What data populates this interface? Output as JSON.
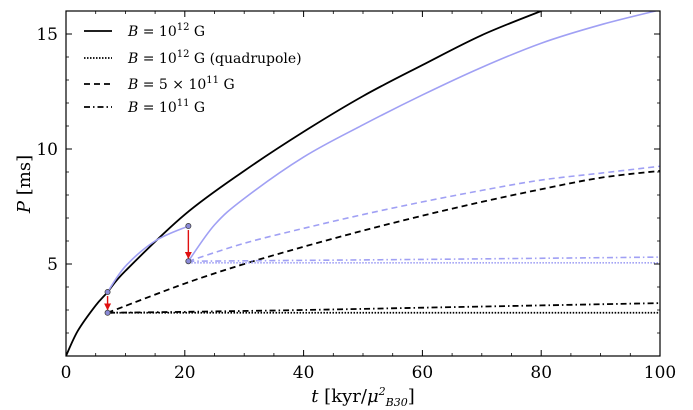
{
  "chart_data": {
    "type": "line",
    "xlabel": "t [kyr/μ²_B30]",
    "ylabel": "P [ms]",
    "xlim": [
      0,
      100
    ],
    "ylim": [
      1,
      16
    ],
    "x_ticks": [
      0,
      20,
      40,
      60,
      80,
      100
    ],
    "y_ticks": [
      5,
      10,
      15
    ],
    "grid": false,
    "legend_position": "top-left",
    "legend": [
      {
        "label": "B = 10^12 G",
        "linestyle": "solid",
        "color": "#000000"
      },
      {
        "label": "B = 10^12 G (quadrupole)",
        "linestyle": "dotted",
        "color": "#000000"
      },
      {
        "label": "B = 5 × 10^11 G",
        "linestyle": "dashed",
        "color": "#000000"
      },
      {
        "label": "B = 10^11 G",
        "linestyle": "dashdot",
        "color": "#000000"
      }
    ],
    "series": [
      {
        "color": "#000000",
        "linestyle": "solid",
        "x": [
          0,
          2,
          5,
          7,
          10,
          20,
          30,
          40,
          50,
          60,
          70,
          80,
          82
        ],
        "y": [
          1.0,
          2.1,
          3.2,
          3.78,
          4.7,
          7.15,
          9.05,
          10.75,
          12.3,
          13.65,
          14.95,
          16.0,
          16.2
        ]
      },
      {
        "color": "#000000",
        "linestyle": "dotted",
        "x": [
          7,
          100
        ],
        "y": [
          2.88,
          2.88
        ]
      },
      {
        "color": "#000000",
        "linestyle": "dashed",
        "x": [
          7,
          20,
          30,
          40,
          50,
          60,
          70,
          80,
          90,
          100
        ],
        "y": [
          2.88,
          4.15,
          5.0,
          5.75,
          6.45,
          7.1,
          7.7,
          8.25,
          8.75,
          9.05
        ]
      },
      {
        "color": "#000000",
        "linestyle": "dashdot",
        "x": [
          7,
          20,
          40,
          60,
          80,
          100
        ],
        "y": [
          2.88,
          2.92,
          3.0,
          3.1,
          3.2,
          3.3
        ]
      },
      {
        "color": "#a0a0f4",
        "linestyle": "solid",
        "x": [
          7,
          10,
          15,
          20.6
        ],
        "y": [
          3.78,
          4.9,
          6.0,
          6.65
        ]
      },
      {
        "color": "#a0a0f4",
        "linestyle": "solid",
        "x": [
          20.6,
          25,
          30,
          40,
          50,
          60,
          70,
          80,
          90,
          100
        ],
        "y": [
          5.12,
          6.7,
          7.85,
          9.65,
          11.05,
          12.35,
          13.55,
          14.6,
          15.4,
          16.05
        ]
      },
      {
        "color": "#a0a0f4",
        "linestyle": "dashed",
        "x": [
          20.6,
          30,
          40,
          50,
          60,
          70,
          80,
          90,
          100
        ],
        "y": [
          5.12,
          5.9,
          6.55,
          7.15,
          7.7,
          8.2,
          8.65,
          8.95,
          9.25
        ]
      },
      {
        "color": "#a0a0f4",
        "linestyle": "dotted",
        "x": [
          20.6,
          100
        ],
        "y": [
          5.05,
          5.05
        ]
      },
      {
        "color": "#a0a0f4",
        "linestyle": "dashdot",
        "x": [
          20.6,
          60,
          100
        ],
        "y": [
          5.12,
          5.2,
          5.3
        ]
      }
    ],
    "transitions": [
      {
        "x": 7,
        "from": 3.78,
        "to": 2.88,
        "color": "#e01010"
      },
      {
        "x": 20.6,
        "from": 6.65,
        "to": 5.12,
        "color": "#e01010"
      }
    ]
  }
}
